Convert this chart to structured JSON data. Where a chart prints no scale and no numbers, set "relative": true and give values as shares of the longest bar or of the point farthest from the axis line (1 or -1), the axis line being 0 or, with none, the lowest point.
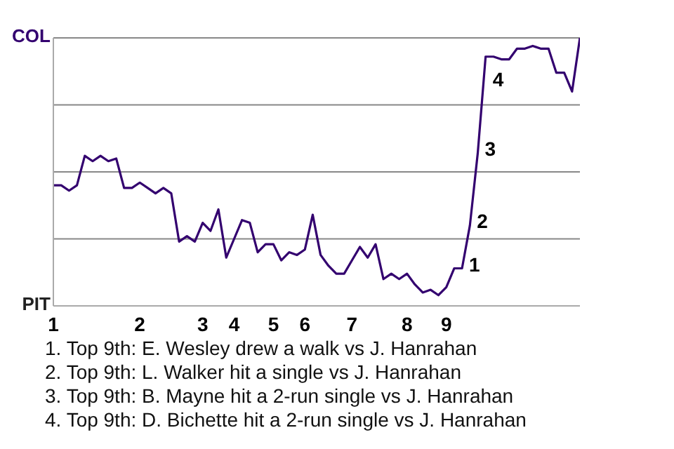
{
  "chart_data": {
    "type": "line",
    "categories": [
      "1",
      null,
      null,
      null,
      null,
      null,
      null,
      null,
      null,
      null,
      null,
      "2",
      null,
      null,
      null,
      null,
      null,
      null,
      null,
      "3",
      null,
      null,
      null,
      "4",
      null,
      null,
      null,
      null,
      "5",
      null,
      null,
      null,
      "6",
      null,
      null,
      null,
      null,
      null,
      "7",
      null,
      null,
      null,
      null,
      null,
      null,
      "8",
      null,
      null,
      null,
      null,
      "9",
      null,
      null,
      null,
      null,
      null,
      null,
      null,
      null,
      null,
      null,
      null,
      null,
      null,
      null,
      null,
      null,
      null
    ],
    "relative": true,
    "series": [
      {
        "color": "#33006f",
        "values": [
          0.45,
          0.45,
          0.43,
          0.45,
          0.56,
          0.54,
          0.56,
          0.54,
          0.55,
          0.44,
          0.44,
          0.46,
          0.44,
          0.42,
          0.44,
          0.42,
          0.24,
          0.26,
          0.24,
          0.31,
          0.28,
          0.36,
          0.18,
          0.25,
          0.32,
          0.31,
          0.2,
          0.23,
          0.23,
          0.17,
          0.2,
          0.19,
          0.21,
          0.34,
          0.19,
          0.15,
          0.12,
          0.12,
          0.17,
          0.22,
          0.18,
          0.23,
          0.1,
          0.12,
          0.1,
          0.12,
          0.08,
          0.05,
          0.06,
          0.04,
          0.07,
          0.14,
          0.14,
          0.3,
          0.57,
          0.93,
          0.93,
          0.92,
          0.92,
          0.96,
          0.96,
          0.97,
          0.96,
          0.96,
          0.87,
          0.87,
          0.8,
          1.0
        ]
      }
    ],
    "grid": "y",
    "marker": "none",
    "annotations": [
      "COL",
      "PIT",
      "1",
      "2",
      "3",
      "4",
      "1. Top 9th: E. Wesley drew a walk vs J. Hanrahan",
      "2. Top 9th: L. Walker hit a single vs J. Hanrahan",
      "3. Top 9th: B. Mayne hit a 2-run single vs J. Hanrahan",
      "4. Top 9th: D. Bichette hit a 2-run single vs J. Hanrahan"
    ]
  }
}
